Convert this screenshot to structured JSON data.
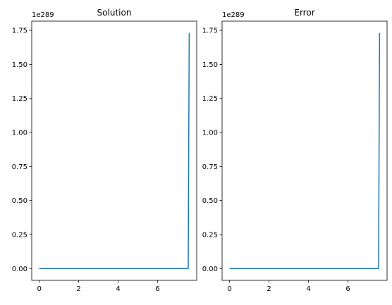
{
  "chart_data": [
    {
      "type": "line",
      "title": "Solution",
      "xlabel": "",
      "ylabel": "",
      "offset_label": "1e289",
      "xlim": [
        -0.38,
        7.98
      ],
      "ylim": [
        -0.0866,
        1.8178
      ],
      "xticks": [
        0,
        2,
        4,
        6
      ],
      "xtick_labels": [
        "0",
        "2",
        "4",
        "6"
      ],
      "yticks": [
        0.0,
        0.25,
        0.5,
        0.75,
        1.0,
        1.25,
        1.5,
        1.75
      ],
      "ytick_labels": [
        "0.00",
        "0.25",
        "0.50",
        "0.75",
        "1.00",
        "1.25",
        "1.50",
        "1.75"
      ],
      "grid": false,
      "series": [
        {
          "color": "#1f77b4",
          "x": [
            0,
            7.55,
            7.6
          ],
          "y": [
            0,
            0,
            1.731
          ]
        }
      ]
    },
    {
      "type": "line",
      "title": "Error",
      "xlabel": "",
      "ylabel": "",
      "offset_label": "1e289",
      "xlim": [
        -0.38,
        7.98
      ],
      "ylim": [
        -0.0866,
        1.8178
      ],
      "xticks": [
        0,
        2,
        4,
        6
      ],
      "xtick_labels": [
        "0",
        "2",
        "4",
        "6"
      ],
      "yticks": [
        0.0,
        0.25,
        0.5,
        0.75,
        1.0,
        1.25,
        1.5,
        1.75
      ],
      "ytick_labels": [
        "0.00",
        "0.25",
        "0.50",
        "0.75",
        "1.00",
        "1.25",
        "1.50",
        "1.75"
      ],
      "grid": false,
      "series": [
        {
          "color": "#1f77b4",
          "x": [
            0,
            7.55,
            7.6
          ],
          "y": [
            0,
            0,
            1.731
          ]
        }
      ]
    }
  ]
}
